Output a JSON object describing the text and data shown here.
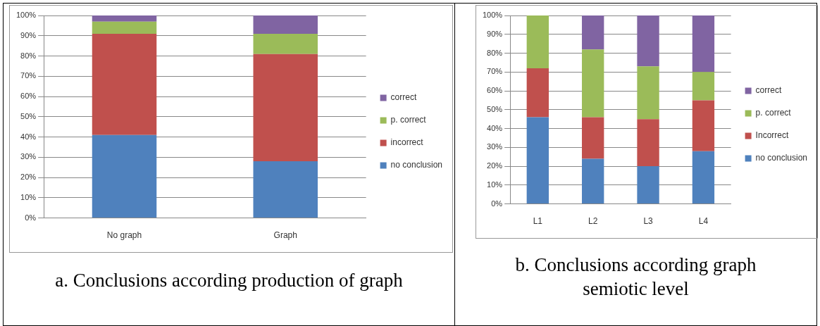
{
  "chart_data": [
    {
      "type": "bar",
      "title": "a.  Conclusions according production of graph",
      "categories": [
        "No graph",
        "Graph"
      ],
      "stacked": true,
      "grid": "y",
      "legend": "right",
      "ylim": [
        0,
        100
      ],
      "yticks": [
        {
          "value": 0,
          "label": "0%"
        },
        {
          "value": 10,
          "label": "10%"
        },
        {
          "value": 20,
          "label": "20%"
        },
        {
          "value": 30,
          "label": "30%"
        },
        {
          "value": 40,
          "label": "40%"
        },
        {
          "value": 50,
          "label": "50%"
        },
        {
          "value": 60,
          "label": "60%"
        },
        {
          "value": 70,
          "label": "70%"
        },
        {
          "value": 80,
          "label": "80%"
        },
        {
          "value": 90,
          "label": "90%"
        },
        {
          "value": 100,
          "label": "100%"
        }
      ],
      "series": [
        {
          "name": "no conclusion",
          "color": "#4f81bd",
          "values": [
            41,
            28
          ]
        },
        {
          "name": "incorrect",
          "color": "#c0504d",
          "values": [
            50,
            53
          ]
        },
        {
          "name": "p. correct",
          "color": "#9bbb59",
          "values": [
            6,
            10
          ]
        },
        {
          "name": "correct",
          "color": "#8064a2",
          "values": [
            3,
            9
          ]
        }
      ]
    },
    {
      "type": "bar",
      "title": "b.  Conclusions according graph semiotic level",
      "categories": [
        "L1",
        "L2",
        "L3",
        "L4"
      ],
      "stacked": true,
      "grid": "y",
      "legend": "right",
      "ylim": [
        0,
        100
      ],
      "yticks": [
        {
          "value": 0,
          "label": "0%"
        },
        {
          "value": 10,
          "label": "10%"
        },
        {
          "value": 20,
          "label": "20%"
        },
        {
          "value": 30,
          "label": "30%"
        },
        {
          "value": 40,
          "label": "40%"
        },
        {
          "value": 50,
          "label": "50%"
        },
        {
          "value": 60,
          "label": "60%"
        },
        {
          "value": 70,
          "label": "70%"
        },
        {
          "value": 80,
          "label": "80%"
        },
        {
          "value": 90,
          "label": "90%"
        },
        {
          "value": 100,
          "label": "100%"
        }
      ],
      "series": [
        {
          "name": "no conclusion",
          "color": "#4f81bd",
          "values": [
            46,
            24,
            20,
            28
          ]
        },
        {
          "name": "Incorrect",
          "color": "#c0504d",
          "values": [
            26,
            22,
            25,
            27
          ]
        },
        {
          "name": "p. correct",
          "color": "#9bbb59",
          "values": [
            28,
            36,
            28,
            15
          ]
        },
        {
          "name": "correct",
          "color": "#8064a2",
          "values": [
            0,
            18,
            27,
            30
          ]
        }
      ]
    }
  ]
}
